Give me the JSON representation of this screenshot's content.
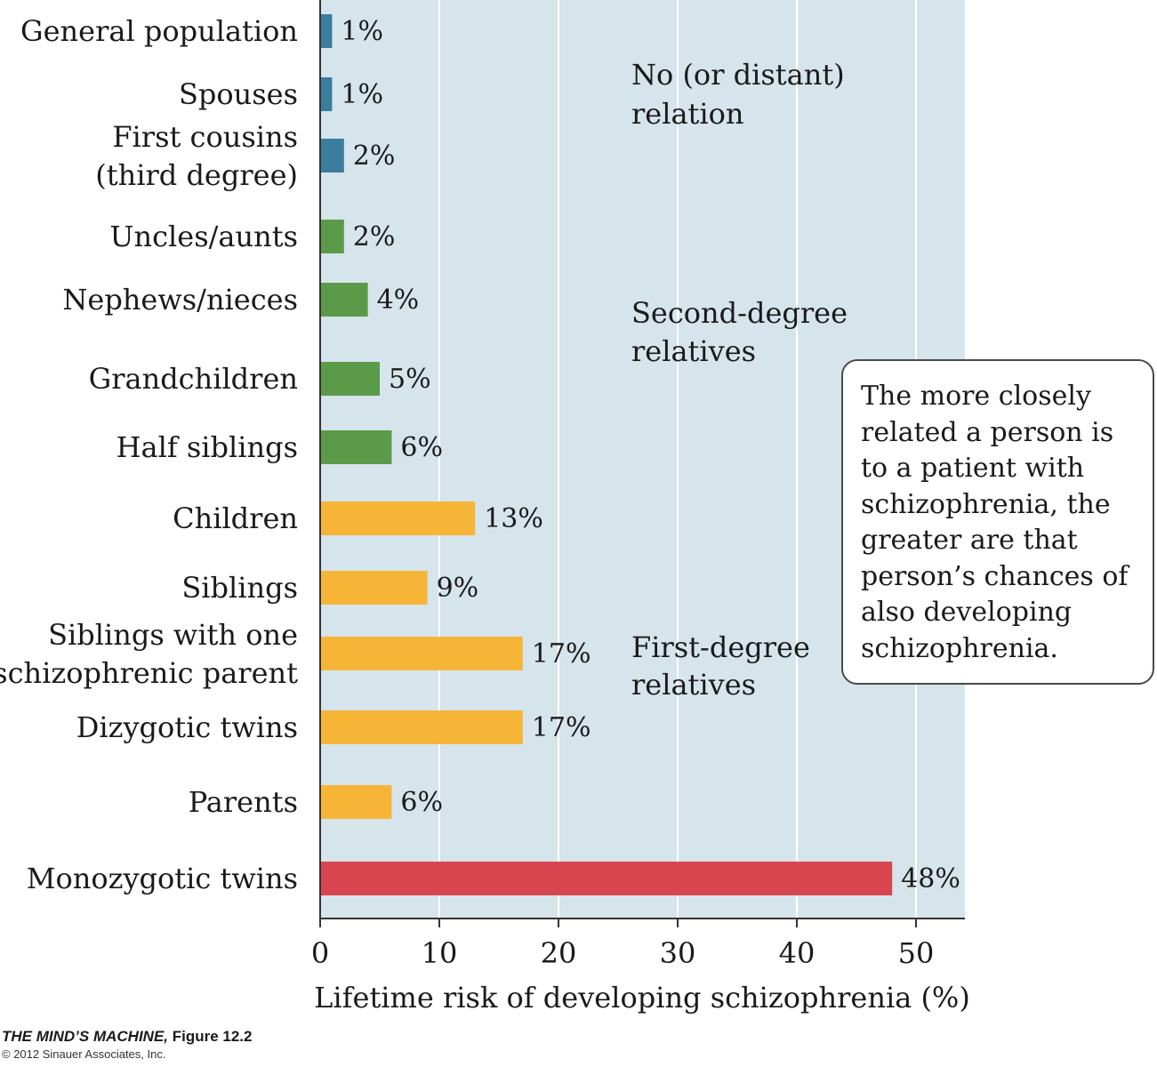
{
  "chart_data": {
    "type": "bar",
    "orientation": "horizontal",
    "categories": [
      "General population",
      "Spouses",
      "First cousins\n(third degree)",
      "Uncles/aunts",
      "Nephews/nieces",
      "Grandchildren",
      "Half siblings",
      "Children",
      "Siblings",
      "Siblings with one\nschizophrenic parent",
      "Dizygotic twins",
      "Parents",
      "Monozygotic twins"
    ],
    "values": [
      1,
      1,
      2,
      2,
      4,
      5,
      6,
      13,
      9,
      17,
      17,
      6,
      48
    ],
    "value_labels": [
      "1%",
      "1%",
      "2%",
      "2%",
      "4%",
      "5%",
      "6%",
      "13%",
      "9%",
      "17%",
      "17%",
      "6%",
      "48%"
    ],
    "bar_groups": [
      "distant",
      "distant",
      "distant",
      "second",
      "second",
      "second",
      "second",
      "first",
      "first",
      "first",
      "first",
      "first",
      "mono"
    ],
    "group_colors": {
      "distant": "#3a7d9c",
      "second": "#5a9a48",
      "first": "#f7b538",
      "mono": "#d9454f"
    },
    "group_labels": [
      {
        "text": [
          "No (or distant)",
          "relation"
        ]
      },
      {
        "text": [
          "Second-degree",
          "relatives"
        ]
      },
      {
        "text": [
          "First-degree",
          "relatives"
        ]
      }
    ],
    "xlabel": "Lifetime risk of developing schizophrenia (%)",
    "xlim": [
      0,
      54
    ],
    "xticks": [
      0,
      10,
      20,
      30,
      40,
      50
    ],
    "grid": true,
    "plot_background": "#d6e4ec",
    "gridline_color": "#ffffff"
  },
  "callout": {
    "text": "The more closely related a person is to a patient with schizophrenia, the greater are that person’s chances of also developing schizophrenia."
  },
  "credit": {
    "title_italic": "THE MIND’S MACHINE,",
    "title_figure": " Figure 12.2",
    "copyright": "© 2012 Sinauer Associates, Inc."
  }
}
